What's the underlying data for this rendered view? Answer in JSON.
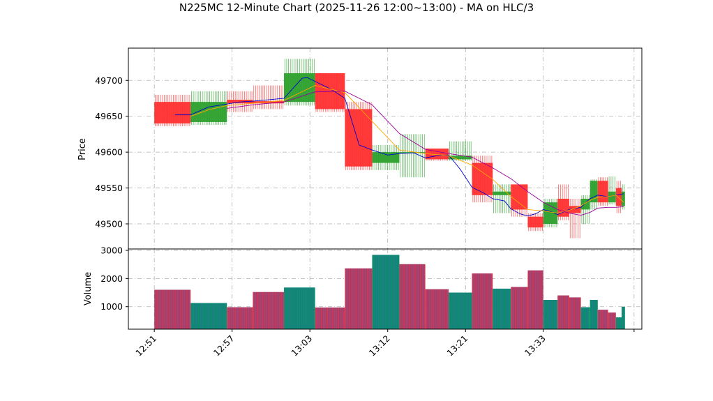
{
  "chart_data": {
    "type": "candlestick",
    "title": "N225MC 12-Minute Chart (2025-11-26 12:00~13:00) - MA on HLC/3",
    "price_panel": {
      "ylabel": "Price",
      "ylim": [
        49465,
        49745
      ],
      "yticks": [
        49500,
        49550,
        49600,
        49650,
        49700
      ],
      "grid": true
    },
    "volume_panel": {
      "ylabel": "Volume",
      "ylim": [
        200,
        3050
      ],
      "yticks": [
        1000,
        2000,
        3000
      ],
      "grid": true
    },
    "x_axis": {
      "xlim": [
        12.5,
        32.3
      ],
      "ticks": [
        {
          "x": 13.5,
          "label": "12:51"
        },
        {
          "x": 16.5,
          "label": "12:57"
        },
        {
          "x": 19.5,
          "label": "13:03"
        },
        {
          "x": 22.5,
          "label": "13:12"
        },
        {
          "x": 25.5,
          "label": "13:21"
        },
        {
          "x": 28.5,
          "label": "13:33"
        },
        {
          "x": 32.0,
          "label": ""
        }
      ]
    },
    "colors": {
      "up": "#2ca02c",
      "down": "#ff3030",
      "ma_fast": "#0000cc",
      "ma_mid": "#ffa500",
      "ma_slow": "#990099",
      "volume_up": "#0b8f6f",
      "volume_down": "#c8385a",
      "volume_edge": "#3f5fa8"
    },
    "candles": [
      {
        "x0": 13.5,
        "x1": 14.9,
        "open": 49670,
        "close": 49640,
        "high": 49680,
        "low": 49636
      },
      {
        "x0": 14.9,
        "x1": 16.3,
        "open": 49642,
        "close": 49670,
        "high": 49685,
        "low": 49638
      },
      {
        "x0": 16.3,
        "x1": 17.3,
        "open": 49673,
        "close": 49668,
        "high": 49685,
        "low": 49656
      },
      {
        "x0": 17.3,
        "x1": 18.5,
        "open": 49671,
        "close": 49668,
        "high": 49693,
        "low": 49660
      },
      {
        "x0": 18.5,
        "x1": 19.7,
        "open": 49670,
        "close": 49710,
        "high": 49730,
        "low": 49665
      },
      {
        "x0": 19.7,
        "x1": 20.85,
        "open": 49710,
        "close": 49660,
        "high": 49710,
        "low": 49656
      },
      {
        "x0": 20.85,
        "x1": 21.9,
        "open": 49660,
        "close": 49580,
        "high": 49670,
        "low": 49575
      },
      {
        "x0": 21.9,
        "x1": 22.95,
        "open": 49585,
        "close": 49600,
        "high": 49610,
        "low": 49575
      },
      {
        "x0": 22.95,
        "x1": 23.95,
        "open": 49600,
        "close": 49600,
        "high": 49625,
        "low": 49565
      },
      {
        "x0": 23.95,
        "x1": 24.85,
        "open": 49605,
        "close": 49590,
        "high": 49605,
        "low": 49588
      },
      {
        "x0": 24.85,
        "x1": 25.75,
        "open": 49590,
        "close": 49595,
        "high": 49615,
        "low": 49588
      },
      {
        "x0": 25.75,
        "x1": 26.55,
        "open": 49585,
        "close": 49540,
        "high": 49595,
        "low": 49530
      },
      {
        "x0": 26.55,
        "x1": 27.25,
        "open": 49540,
        "close": 49545,
        "high": 49555,
        "low": 49515
      },
      {
        "x0": 27.25,
        "x1": 27.9,
        "open": 49555,
        "close": 49520,
        "high": 49555,
        "low": 49510
      },
      {
        "x0": 27.9,
        "x1": 28.5,
        "open": 49510,
        "close": 49495,
        "high": 49515,
        "low": 49490
      },
      {
        "x0": 28.5,
        "x1": 29.05,
        "open": 49500,
        "close": 49530,
        "high": 49535,
        "low": 49495
      },
      {
        "x0": 29.05,
        "x1": 29.5,
        "open": 49535,
        "close": 49510,
        "high": 49555,
        "low": 49505
      },
      {
        "x0": 29.5,
        "x1": 29.95,
        "open": 49525,
        "close": 49515,
        "high": 49535,
        "low": 49480
      },
      {
        "x0": 29.95,
        "x1": 30.3,
        "open": 49520,
        "close": 49535,
        "high": 49540,
        "low": 49500
      },
      {
        "x0": 30.3,
        "x1": 30.6,
        "open": 49530,
        "close": 49560,
        "high": 49562,
        "low": 49520
      },
      {
        "x0": 30.6,
        "x1": 31.0,
        "open": 49560,
        "close": 49530,
        "high": 49565,
        "low": 49525
      },
      {
        "x0": 31.0,
        "x1": 31.3,
        "open": 49530,
        "close": 49545,
        "high": 49566,
        "low": 49527
      },
      {
        "x0": 31.3,
        "x1": 31.52,
        "open": 49550,
        "close": 49525,
        "high": 49560,
        "low": 49515
      },
      {
        "x0": 31.52,
        "x1": 31.65,
        "open": 49525,
        "close": 49545,
        "high": 49555,
        "low": 49520
      }
    ],
    "volume": [
      {
        "x0": 13.5,
        "x1": 14.9,
        "value": 1600,
        "up": false
      },
      {
        "x0": 14.9,
        "x1": 16.3,
        "value": 1130,
        "up": true
      },
      {
        "x0": 16.3,
        "x1": 17.3,
        "value": 980,
        "up": false
      },
      {
        "x0": 17.3,
        "x1": 18.5,
        "value": 1520,
        "up": false
      },
      {
        "x0": 18.5,
        "x1": 19.7,
        "value": 1680,
        "up": true
      },
      {
        "x0": 19.7,
        "x1": 20.85,
        "value": 970,
        "up": false
      },
      {
        "x0": 20.85,
        "x1": 21.9,
        "value": 2360,
        "up": false
      },
      {
        "x0": 21.9,
        "x1": 22.95,
        "value": 2840,
        "up": true
      },
      {
        "x0": 22.95,
        "x1": 23.95,
        "value": 2510,
        "up": false
      },
      {
        "x0": 23.95,
        "x1": 24.85,
        "value": 1620,
        "up": false
      },
      {
        "x0": 24.85,
        "x1": 25.75,
        "value": 1500,
        "up": true
      },
      {
        "x0": 25.75,
        "x1": 26.55,
        "value": 2180,
        "up": false
      },
      {
        "x0": 26.55,
        "x1": 27.25,
        "value": 1640,
        "up": true
      },
      {
        "x0": 27.25,
        "x1": 27.9,
        "value": 1700,
        "up": false
      },
      {
        "x0": 27.9,
        "x1": 28.5,
        "value": 2290,
        "up": false
      },
      {
        "x0": 28.5,
        "x1": 29.05,
        "value": 1240,
        "up": true
      },
      {
        "x0": 29.05,
        "x1": 29.5,
        "value": 1400,
        "up": false
      },
      {
        "x0": 29.5,
        "x1": 29.95,
        "value": 1330,
        "up": false
      },
      {
        "x0": 29.95,
        "x1": 30.3,
        "value": 980,
        "up": true
      },
      {
        "x0": 30.3,
        "x1": 30.6,
        "value": 1240,
        "up": true
      },
      {
        "x0": 30.6,
        "x1": 31.0,
        "value": 890,
        "up": false
      },
      {
        "x0": 31.0,
        "x1": 31.3,
        "value": 790,
        "up": false
      },
      {
        "x0": 31.3,
        "x1": 31.52,
        "value": 620,
        "up": true
      },
      {
        "x0": 31.52,
        "x1": 31.65,
        "value": 1000,
        "up": true
      }
    ],
    "ma_series": [
      {
        "color_key": "ma_fast",
        "points": [
          [
            14.3,
            49652
          ],
          [
            14.9,
            49652
          ],
          [
            15.6,
            49663
          ],
          [
            16.3,
            49667
          ],
          [
            16.8,
            49670
          ],
          [
            17.3,
            49671
          ],
          [
            17.9,
            49673
          ],
          [
            18.5,
            49675
          ],
          [
            19.2,
            49703
          ],
          [
            19.4,
            49704
          ],
          [
            20.3,
            49688
          ],
          [
            20.85,
            49675
          ],
          [
            21.4,
            49610
          ],
          [
            21.9,
            49603
          ],
          [
            22.5,
            49596
          ],
          [
            22.95,
            49598
          ],
          [
            23.5,
            49599
          ],
          [
            23.95,
            49592
          ],
          [
            24.4,
            49595
          ],
          [
            24.85,
            49596
          ],
          [
            25.3,
            49576
          ],
          [
            25.75,
            49551
          ],
          [
            26.2,
            49543
          ],
          [
            26.55,
            49535
          ],
          [
            27.0,
            49532
          ],
          [
            27.25,
            49521
          ],
          [
            27.6,
            49514
          ],
          [
            27.9,
            49511
          ],
          [
            28.2,
            49514
          ],
          [
            28.5,
            49520
          ],
          [
            28.8,
            49517
          ],
          [
            29.05,
            49513
          ],
          [
            29.5,
            49520
          ],
          [
            29.95,
            49523
          ],
          [
            30.3,
            49535
          ],
          [
            30.6,
            49540
          ],
          [
            31.0,
            49538
          ],
          [
            31.3,
            49540
          ],
          [
            31.6,
            49542
          ]
        ]
      },
      {
        "color_key": "ma_mid",
        "points": [
          [
            14.9,
            49650
          ],
          [
            15.6,
            49659
          ],
          [
            16.3,
            49665
          ],
          [
            17.3,
            49668
          ],
          [
            18.5,
            49672
          ],
          [
            19.7,
            49693
          ],
          [
            20.85,
            49683
          ],
          [
            21.9,
            49643
          ],
          [
            22.95,
            49603
          ],
          [
            23.95,
            49598
          ],
          [
            24.85,
            49595
          ],
          [
            25.75,
            49582
          ],
          [
            26.55,
            49562
          ],
          [
            27.25,
            49538
          ],
          [
            27.9,
            49520
          ],
          [
            28.5,
            49518
          ],
          [
            29.05,
            49515
          ],
          [
            29.5,
            49519
          ],
          [
            29.95,
            49525
          ],
          [
            30.3,
            49533
          ],
          [
            30.6,
            49537
          ],
          [
            31.0,
            49538
          ],
          [
            31.3,
            49540
          ],
          [
            31.6,
            49530
          ]
        ]
      },
      {
        "color_key": "ma_slow",
        "points": [
          [
            16.3,
            49661
          ],
          [
            17.3,
            49666
          ],
          [
            18.5,
            49670
          ],
          [
            19.7,
            49684
          ],
          [
            20.85,
            49685
          ],
          [
            21.9,
            49666
          ],
          [
            22.95,
            49626
          ],
          [
            23.95,
            49604
          ],
          [
            24.85,
            49598
          ],
          [
            25.75,
            49593
          ],
          [
            26.55,
            49578
          ],
          [
            27.25,
            49563
          ],
          [
            27.9,
            49545
          ],
          [
            28.5,
            49530
          ],
          [
            29.05,
            49520
          ],
          [
            29.5,
            49515
          ],
          [
            29.95,
            49512
          ],
          [
            30.3,
            49516
          ],
          [
            30.6,
            49522
          ],
          [
            31.0,
            49523
          ],
          [
            31.3,
            49523
          ],
          [
            31.6,
            49524
          ]
        ]
      }
    ]
  }
}
